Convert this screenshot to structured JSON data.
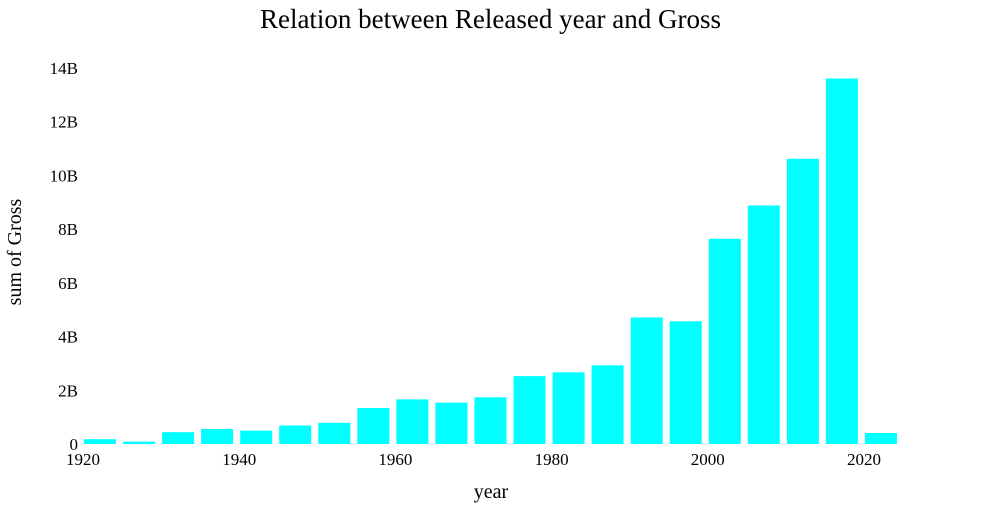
{
  "chart_data": {
    "type": "bar",
    "title": "Relation between Released year and Gross",
    "xlabel": "year",
    "ylabel": "sum of Gross",
    "bar_color": "#00ffff",
    "grid": false,
    "xlim": [
      1920,
      2025
    ],
    "ylim": [
      0,
      14000000000
    ],
    "x_ticks": [
      1920,
      1940,
      1960,
      1980,
      2000,
      2020
    ],
    "y_ticks": [
      0,
      2000000000,
      4000000000,
      6000000000,
      8000000000,
      10000000000,
      12000000000,
      14000000000
    ],
    "y_tick_labels": [
      "0",
      "2B",
      "4B",
      "6B",
      "8B",
      "10B",
      "12B",
      "14B"
    ],
    "bin_width": 5,
    "bins": [
      {
        "start": 1920,
        "value": 180000000
      },
      {
        "start": 1925,
        "value": 90000000
      },
      {
        "start": 1930,
        "value": 440000000
      },
      {
        "start": 1935,
        "value": 560000000
      },
      {
        "start": 1940,
        "value": 500000000
      },
      {
        "start": 1945,
        "value": 690000000
      },
      {
        "start": 1950,
        "value": 790000000
      },
      {
        "start": 1955,
        "value": 1340000000
      },
      {
        "start": 1960,
        "value": 1660000000
      },
      {
        "start": 1965,
        "value": 1540000000
      },
      {
        "start": 1970,
        "value": 1740000000
      },
      {
        "start": 1975,
        "value": 2530000000
      },
      {
        "start": 1980,
        "value": 2670000000
      },
      {
        "start": 1985,
        "value": 2930000000
      },
      {
        "start": 1990,
        "value": 4710000000
      },
      {
        "start": 1995,
        "value": 4570000000
      },
      {
        "start": 2000,
        "value": 7640000000
      },
      {
        "start": 2005,
        "value": 8880000000
      },
      {
        "start": 2010,
        "value": 10620000000
      },
      {
        "start": 2015,
        "value": 13610000000
      },
      {
        "start": 2020,
        "value": 410000000
      }
    ]
  }
}
